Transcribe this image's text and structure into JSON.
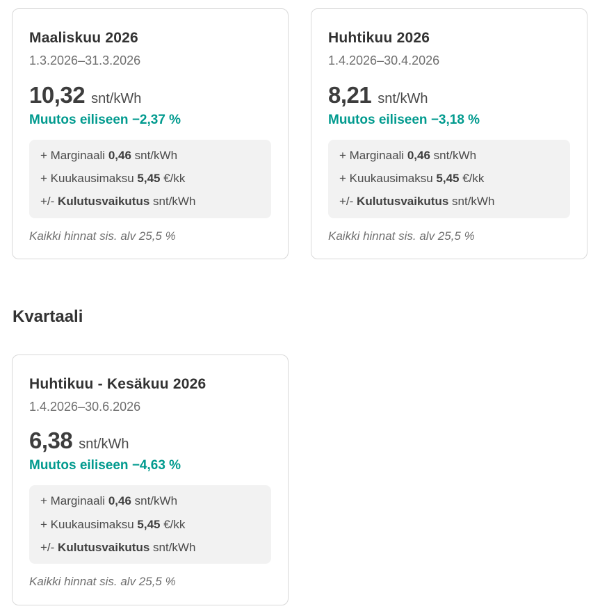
{
  "colors": {
    "accent_teal": "#009a8e",
    "title_dark": "#323232",
    "muted_gray": "#6f6f6f",
    "box_bg": "#f2f2f2",
    "card_border": "#d9d9d9"
  },
  "cards": [
    {
      "title": "Maaliskuu 2026",
      "date_range": "1.3.2026–31.3.2026",
      "price": "10,32",
      "price_unit": "snt/kWh",
      "change_label": "Muutos eiliseen",
      "change_value": "−2,37 %",
      "details": [
        {
          "pre": "+ Marginaali ",
          "bold": "0,46",
          "post": " snt/kWh"
        },
        {
          "pre": "+ Kuukausimaksu ",
          "bold": "5,45",
          "post": " €/kk"
        },
        {
          "pre": "+/- ",
          "bold": "Kulutusvaikutus",
          "post": " snt/kWh"
        }
      ],
      "vat_note": "Kaikki hinnat sis. alv 25,5 %"
    },
    {
      "title": "Huhtikuu 2026",
      "date_range": "1.4.2026–30.4.2026",
      "price": "8,21",
      "price_unit": "snt/kWh",
      "change_label": "Muutos eiliseen",
      "change_value": "−3,18 %",
      "details": [
        {
          "pre": "+ Marginaali ",
          "bold": "0,46",
          "post": " snt/kWh"
        },
        {
          "pre": "+ Kuukausimaksu ",
          "bold": "5,45",
          "post": " €/kk"
        },
        {
          "pre": "+/- ",
          "bold": "Kulutusvaikutus",
          "post": " snt/kWh"
        }
      ],
      "vat_note": "Kaikki hinnat sis. alv 25,5 %"
    }
  ],
  "quarter": {
    "heading": "Kvartaali",
    "card": {
      "title": "Huhtikuu - Kesäkuu 2026",
      "date_range": "1.4.2026–30.6.2026",
      "price": "6,38",
      "price_unit": "snt/kWh",
      "change_label": "Muutos eiliseen",
      "change_value": "−4,63 %",
      "details": [
        {
          "pre": "+ Marginaali ",
          "bold": "0,46",
          "post": " snt/kWh"
        },
        {
          "pre": "+ Kuukausimaksu ",
          "bold": "5,45",
          "post": " €/kk"
        },
        {
          "pre": "+/- ",
          "bold": "Kulutusvaikutus",
          "post": " snt/kWh"
        }
      ],
      "vat_note": "Kaikki hinnat sis. alv 25,5 %"
    }
  }
}
